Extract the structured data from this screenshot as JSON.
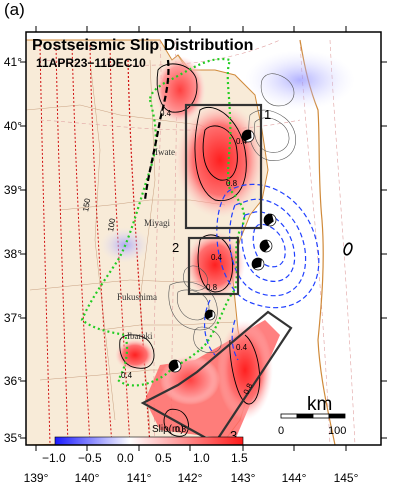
{
  "panel_label": "(a)",
  "title": "Postseismic Slip Distribution",
  "subtitle": "11APR23−11DEC10",
  "axes": {
    "lon_ticks": [
      "139°",
      "140°",
      "141°",
      "142°",
      "143°",
      "144°",
      "145°"
    ],
    "lat_ticks": [
      "41°",
      "40°",
      "39°",
      "38°",
      "37°",
      "36°",
      "35°"
    ]
  },
  "places": {
    "iwate": "Iwate",
    "miyagi": "Miyagi",
    "fukushima": "Fukushima",
    "ibaraki": "Ibaraki"
  },
  "isodepth": {
    "d100": "100",
    "d150": "150"
  },
  "contour_labels": {
    "a": "0.4",
    "b": "0.8",
    "c": "0.4",
    "d": "0.8",
    "e": "0.4",
    "f": "0.4",
    "g": "0.4",
    "h": "0.8",
    "i": "0.8"
  },
  "boxes": {
    "b1": "1",
    "b2": "2",
    "b3": "3"
  },
  "scale_bar": {
    "unit": "km",
    "min": "0",
    "max": "100"
  },
  "colorbar": {
    "title": "Slip(m)",
    "ticks": [
      "−1.0",
      "−0.5",
      "0.0",
      "0.5",
      "1.0",
      "1.5"
    ],
    "colors": {
      "neg": "#1a1aff",
      "zero": "#ffffff",
      "pos": "#ff1a1a"
    }
  },
  "colors": {
    "coast_fill": "#f8ebd8",
    "coast_line": "#d08a3a",
    "isodepth": "#d01010",
    "aftershock_contour": "#555555",
    "rupture_contour": "#2040ff",
    "green_outline": "#22cc22",
    "accent_box": "#333333"
  }
}
